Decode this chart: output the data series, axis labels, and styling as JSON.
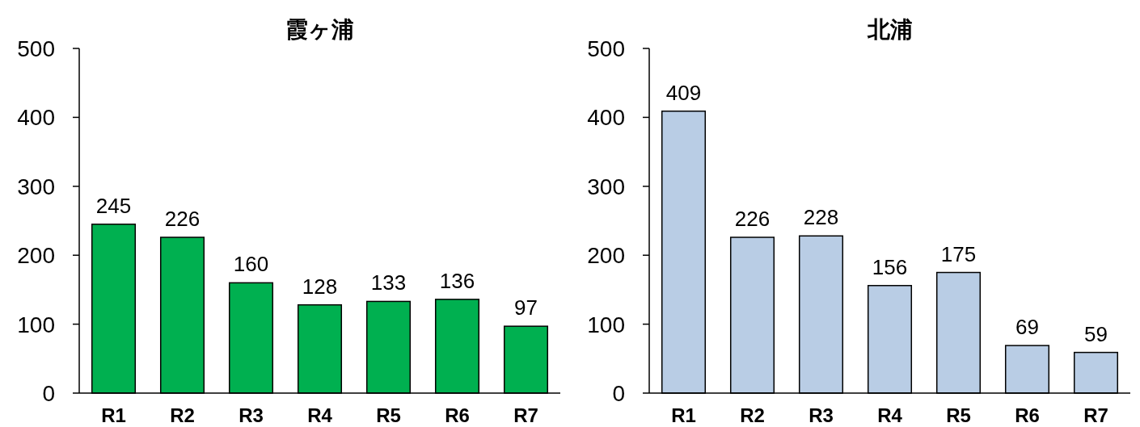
{
  "chart_data": [
    {
      "type": "bar",
      "title": "霞ヶ浦",
      "categories": [
        "R1",
        "R2",
        "R3",
        "R4",
        "R5",
        "R6",
        "R7"
      ],
      "values": [
        245,
        226,
        160,
        128,
        133,
        136,
        97
      ],
      "color": "#00b050",
      "ylim": [
        0,
        500
      ],
      "yticks": [
        0,
        100,
        200,
        300,
        400,
        500
      ],
      "data_labels": true,
      "grid": false
    },
    {
      "type": "bar",
      "title": "北浦",
      "categories": [
        "R1",
        "R2",
        "R3",
        "R4",
        "R5",
        "R6",
        "R7"
      ],
      "values": [
        409,
        226,
        228,
        156,
        175,
        69,
        59
      ],
      "color": "#b9cde5",
      "ylim": [
        0,
        500
      ],
      "yticks": [
        0,
        100,
        200,
        300,
        400,
        500
      ],
      "data_labels": true,
      "grid": false
    }
  ]
}
